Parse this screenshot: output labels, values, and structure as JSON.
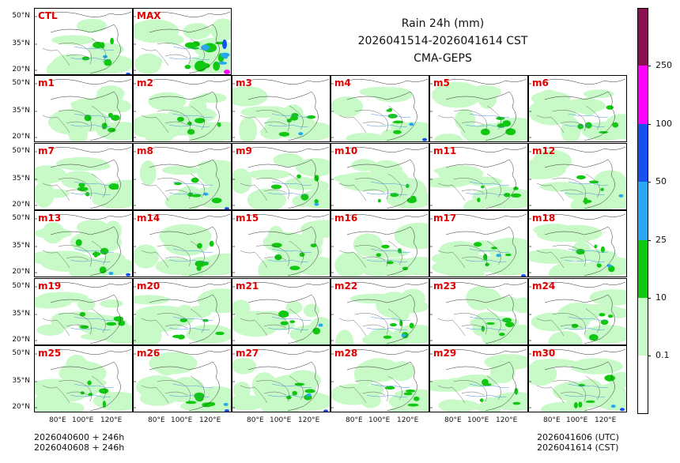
{
  "title": {
    "line1": "Rain 24h (mm)",
    "line2": "2026041514-2026041614 CST",
    "line3": "CMA-GEPS"
  },
  "top_panels": [
    "CTL",
    "MAX"
  ],
  "members": [
    "m1",
    "m2",
    "m3",
    "m4",
    "m5",
    "m6",
    "m7",
    "m8",
    "m9",
    "m10",
    "m11",
    "m12",
    "m13",
    "m14",
    "m15",
    "m16",
    "m17",
    "m18",
    "m19",
    "m20",
    "m21",
    "m22",
    "m23",
    "m24",
    "m25",
    "m26",
    "m27",
    "m28",
    "m29",
    "m30"
  ],
  "lat_labels": [
    "50°N",
    "35°N",
    "20°N"
  ],
  "lon_labels": [
    "80°E",
    "100°E",
    "120°E"
  ],
  "colorbar": {
    "levels": [
      "0.1",
      "10",
      "25",
      "50",
      "100",
      "250"
    ],
    "colors": [
      "#ffffff",
      "#c8fac8",
      "#10c810",
      "#28a8f0",
      "#1850f0",
      "#ff00ff",
      "#8a1050"
    ]
  },
  "footer": {
    "left_line1": "2026040600 + 246h",
    "left_line2": "2026040608 + 246h",
    "right_line1": "2026041606 (UTC)",
    "right_line2": "2026041614 (CST)"
  }
}
